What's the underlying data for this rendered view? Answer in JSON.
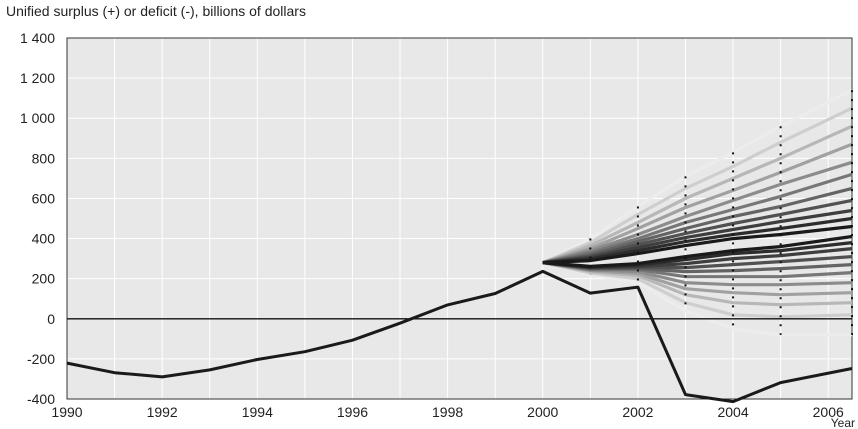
{
  "chart_data": {
    "type": "line",
    "ylabel": "Unified surplus (+) or deficit (-), billions of dollars",
    "xlabel": "Year",
    "xlim": [
      1990,
      2006.5
    ],
    "ylim": [
      -400,
      1400
    ],
    "x_ticks": [
      1990,
      1992,
      1994,
      1996,
      1998,
      2000,
      2002,
      2004,
      2006
    ],
    "x_tick_labels": [
      "1990",
      "1992",
      "1994",
      "1996",
      "1998",
      "2000",
      "2002",
      "2004",
      "2006"
    ],
    "y_ticks": [
      -400,
      -200,
      0,
      200,
      400,
      600,
      800,
      1000,
      1200,
      1400
    ],
    "y_tick_labels": [
      "-400",
      "-200",
      "0",
      "200",
      "400",
      "600",
      "800",
      "1 000",
      "1 200",
      "1 400"
    ],
    "grid": true,
    "colors": {
      "background": "#e8e8e8",
      "grid": "#ffffff",
      "actual": "#1a1a1a",
      "fan_dark": "#1a1a1a",
      "fan_light": "#ececec"
    },
    "actual": {
      "x": [
        1990,
        1991,
        1992,
        1993,
        1994,
        1995,
        1996,
        1997,
        1998,
        1999,
        2000,
        2001,
        2002,
        2003,
        2004,
        2005,
        2006.5
      ],
      "y": [
        -221,
        -269,
        -290,
        -255,
        -203,
        -164,
        -107,
        -22,
        69,
        126,
        236,
        128,
        158,
        -378,
        -413,
        -318,
        -248
      ]
    },
    "projection_origin": {
      "x": 2000,
      "y": 280
    },
    "projection_years": [
      2001,
      2002,
      2003,
      2004,
      2005,
      2006.5
    ],
    "projection_bands": [
      {
        "lower": [
          220,
          180,
          40,
          -50,
          -80,
          -80
        ],
        "upper": [
          400,
          560,
          710,
          830,
          960,
          1140
        ]
      },
      {
        "lower": [
          228,
          200,
          80,
          20,
          10,
          20
        ],
        "upper": [
          380,
          520,
          650,
          760,
          880,
          1050
        ]
      },
      {
        "lower": [
          235,
          215,
          120,
          80,
          70,
          80
        ],
        "upper": [
          365,
          480,
          600,
          700,
          800,
          960
        ]
      },
      {
        "lower": [
          240,
          225,
          150,
          130,
          120,
          130
        ],
        "upper": [
          350,
          450,
          555,
          640,
          730,
          870
        ]
      },
      {
        "lower": [
          243,
          235,
          180,
          170,
          170,
          180
        ],
        "upper": [
          340,
          420,
          510,
          590,
          670,
          780
        ]
      },
      {
        "lower": [
          246,
          245,
          210,
          210,
          210,
          230
        ],
        "upper": [
          330,
          400,
          480,
          545,
          610,
          720
        ]
      },
      {
        "lower": [
          250,
          250,
          235,
          240,
          250,
          270
        ],
        "upper": [
          320,
          385,
          450,
          510,
          560,
          650
        ]
      },
      {
        "lower": [
          252,
          255,
          255,
          270,
          285,
          310
        ],
        "upper": [
          312,
          370,
          425,
          475,
          520,
          590
        ]
      },
      {
        "lower": [
          255,
          260,
          275,
          300,
          315,
          350
        ],
        "upper": [
          305,
          355,
          405,
          445,
          485,
          540
        ]
      },
      {
        "lower": [
          258,
          268,
          295,
          325,
          340,
          380
        ],
        "upper": [
          298,
          340,
          385,
          420,
          450,
          500
        ]
      },
      {
        "lower": [
          261,
          275,
          310,
          340,
          360,
          410
        ],
        "upper": [
          290,
          325,
          365,
          400,
          420,
          460
        ]
      }
    ]
  }
}
